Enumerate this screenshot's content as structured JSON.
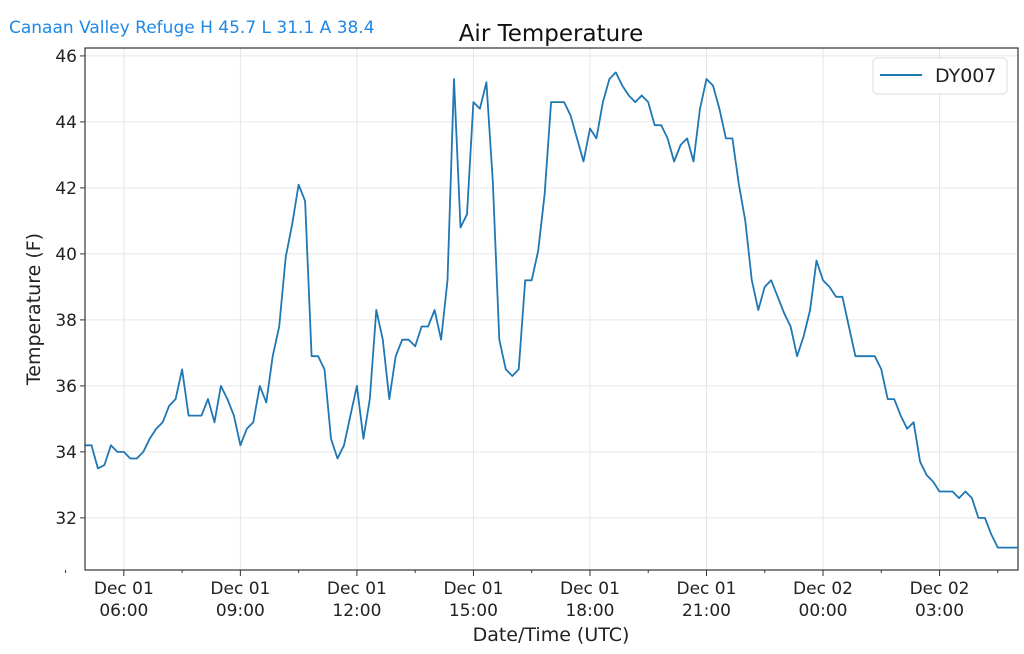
{
  "header": {
    "station_summary": "Canaan Valley Refuge H 45.7 L 31.1 A 38.4"
  },
  "chart_data": {
    "type": "line",
    "title": "Air Temperature",
    "xlabel": "Date/Time (UTC)",
    "ylabel": "Temperature (F)",
    "x_start_hour": 5,
    "interval_minutes": 10,
    "xlim_hours": [
      5,
      29.02
    ],
    "ylim": [
      30.42,
      46.24
    ],
    "yticks": [
      32,
      34,
      36,
      38,
      40,
      42,
      44,
      46
    ],
    "xticks": [
      {
        "hour": 6,
        "label1": "Dec 01",
        "label2": "06:00"
      },
      {
        "hour": 9,
        "label1": "Dec 01",
        "label2": "09:00"
      },
      {
        "hour": 12,
        "label1": "Dec 01",
        "label2": "12:00"
      },
      {
        "hour": 15,
        "label1": "Dec 01",
        "label2": "15:00"
      },
      {
        "hour": 18,
        "label1": "Dec 01",
        "label2": "18:00"
      },
      {
        "hour": 21,
        "label1": "Dec 01",
        "label2": "21:00"
      },
      {
        "hour": 24,
        "label1": "Dec 02",
        "label2": "00:00"
      },
      {
        "hour": 27,
        "label1": "Dec 02",
        "label2": "03:00"
      }
    ],
    "grid": true,
    "legend_position": "top-right",
    "series": [
      {
        "name": "DY007",
        "color": "#1f77b4",
        "values": [
          34.2,
          34.2,
          33.5,
          33.6,
          34.2,
          34.0,
          34.0,
          33.8,
          33.8,
          34.0,
          34.4,
          34.7,
          34.9,
          35.4,
          35.6,
          36.5,
          35.1,
          35.1,
          35.1,
          35.6,
          34.9,
          36.0,
          35.6,
          35.1,
          34.2,
          34.7,
          34.9,
          36.0,
          35.5,
          36.9,
          37.8,
          39.9,
          40.9,
          42.1,
          41.6,
          36.9,
          36.9,
          36.5,
          34.4,
          33.8,
          34.2,
          35.1,
          36.0,
          34.4,
          35.6,
          38.3,
          37.4,
          35.6,
          36.9,
          37.4,
          37.4,
          37.2,
          37.8,
          37.8,
          38.3,
          37.4,
          39.2,
          45.3,
          40.8,
          41.2,
          44.6,
          44.4,
          45.2,
          42.2,
          37.4,
          36.5,
          36.3,
          36.5,
          39.2,
          39.2,
          40.1,
          41.8,
          44.6,
          44.6,
          44.6,
          44.2,
          43.5,
          42.8,
          43.8,
          43.5,
          44.6,
          45.3,
          45.5,
          45.1,
          44.8,
          44.6,
          44.8,
          44.6,
          43.9,
          43.9,
          43.5,
          42.8,
          43.3,
          43.5,
          42.8,
          44.4,
          45.3,
          45.1,
          44.4,
          43.5,
          43.5,
          42.1,
          41.0,
          39.2,
          38.3,
          39.0,
          39.2,
          38.7,
          38.2,
          37.8,
          36.9,
          37.5,
          38.3,
          39.8,
          39.2,
          39.0,
          38.7,
          38.7,
          37.8,
          36.9,
          36.9,
          36.9,
          36.9,
          36.5,
          35.6,
          35.6,
          35.1,
          34.7,
          34.9,
          33.7,
          33.3,
          33.1,
          32.8,
          32.8,
          32.8,
          32.6,
          32.8,
          32.6,
          32.0,
          32.0,
          31.5,
          31.1,
          31.1,
          31.1,
          31.1
        ]
      }
    ]
  }
}
